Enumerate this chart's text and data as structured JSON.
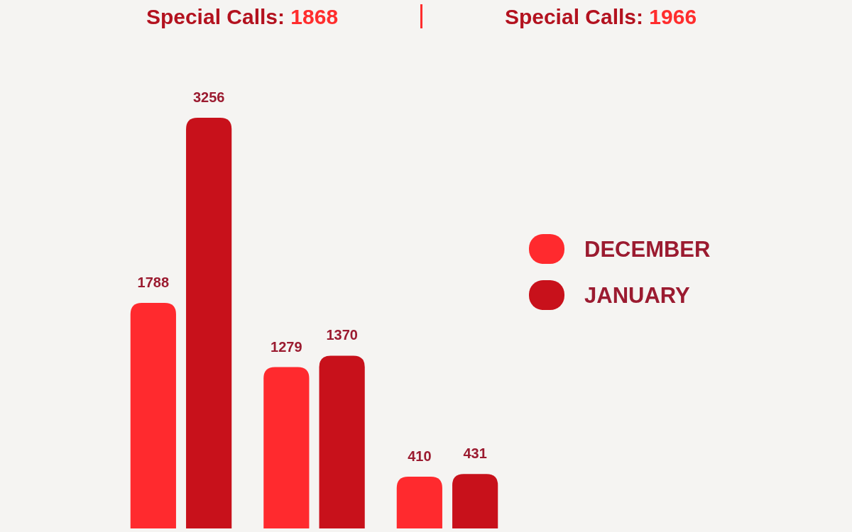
{
  "chart_data": {
    "type": "bar",
    "categories": [
      null,
      null,
      null
    ],
    "series": [
      {
        "name": "DECEMBER",
        "color": "#ff2a2e",
        "values": [
          1788,
          1279,
          410
        ]
      },
      {
        "name": "JANUARY",
        "color": "#c8111b",
        "values": [
          3256,
          1370,
          431
        ]
      }
    ],
    "data_labels": true,
    "legend": "right",
    "annotations": [
      "Special Calls: 1868",
      "Special Calls: 1966"
    ]
  }
}
